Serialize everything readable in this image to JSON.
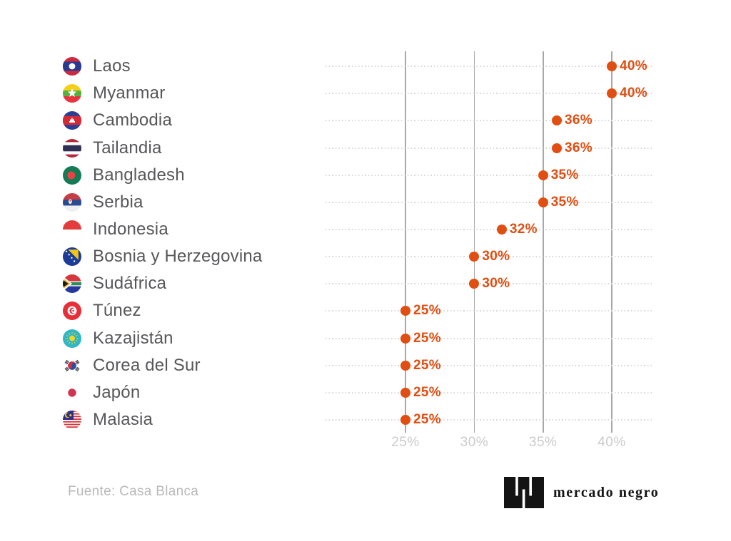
{
  "chart_data": {
    "type": "scatter",
    "title": "",
    "categories": [
      "Laos",
      "Myanmar",
      "Cambodia",
      "Tailandia",
      "Bangladesh",
      "Serbia",
      "Indonesia",
      "Bosnia y Herzegovina",
      "Sudáfrica",
      "Túnez",
      "Kazajistán",
      "Corea del Sur",
      "Japón",
      "Malasia"
    ],
    "values": [
      40,
      40,
      36,
      36,
      35,
      35,
      32,
      30,
      30,
      25,
      25,
      25,
      25,
      25
    ],
    "value_labels": [
      "40%",
      "40%",
      "36%",
      "36%",
      "35%",
      "35%",
      "32%",
      "30%",
      "30%",
      "25%",
      "25%",
      "25%",
      "25%",
      "25%"
    ],
    "flag_icons": [
      "laos-flag-icon",
      "myanmar-flag-icon",
      "cambodia-flag-icon",
      "tailandia-flag-icon",
      "bangladesh-flag-icon",
      "serbia-flag-icon",
      "indonesia-flag-icon",
      "bosnia-flag-icon",
      "sudafrica-flag-icon",
      "tunez-flag-icon",
      "kazajistan-flag-icon",
      "corea-flag-icon",
      "japon-flag-icon",
      "malasia-flag-icon"
    ],
    "x_ticks": [
      25,
      30,
      35,
      40
    ],
    "x_tick_labels": [
      "25%",
      "30%",
      "35%",
      "40%"
    ],
    "xlim": [
      25,
      40
    ],
    "xlabel": "",
    "ylabel": "",
    "grid": "vertical-solid-lines-with-horizontal-dotted-row-guides",
    "legend": "none",
    "dot_color": "#E04E12",
    "category_label_color": "#57575A",
    "tick_label_color": "#CBCBCB"
  },
  "source": {
    "text": "Fuente: Casa Blanca"
  },
  "brand": {
    "name": "mercado negro",
    "logo_icon": "mercado-negro-logo-icon"
  }
}
